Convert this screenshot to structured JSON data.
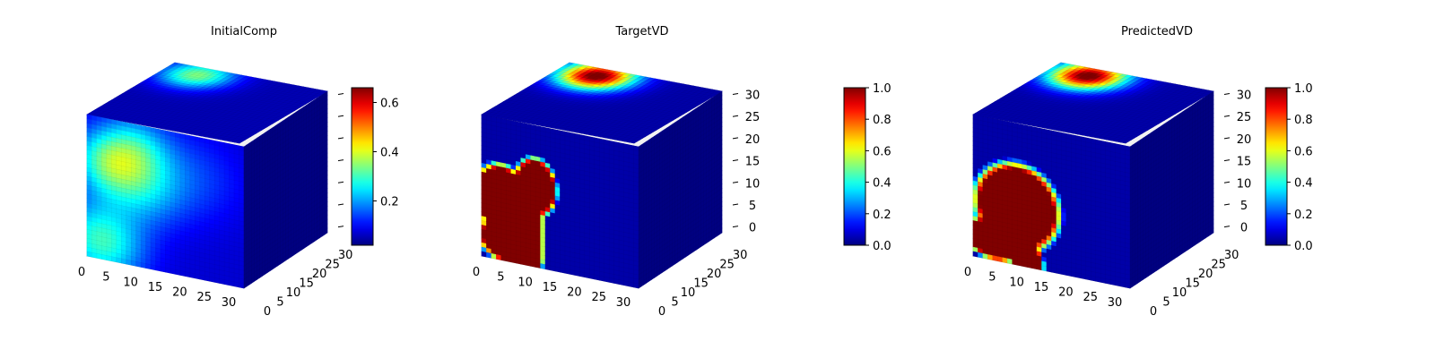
{
  "chart_data": [
    {
      "type": "heatmap",
      "subtype": "3d-voxel-cube",
      "title": "InitialComp",
      "colormap": "jet",
      "x_ticks": [
        0,
        5,
        10,
        15,
        20,
        25,
        30
      ],
      "y_ticks": [
        0,
        5,
        10,
        15,
        20,
        25,
        30
      ],
      "z_ticks": [],
      "grid_size": 32,
      "colorbar": {
        "min": 0.02,
        "max": 0.66,
        "ticks": [
          0.2,
          0.4,
          0.6
        ],
        "tick_labels": [
          "0.2",
          "0.4",
          "0.6"
        ]
      },
      "front_face": {
        "base": 0.08,
        "blobs": [
          [
            3,
            28,
            6,
            0.35
          ],
          [
            4,
            10,
            5,
            0.3
          ],
          [
            11,
            14,
            6,
            0.22
          ],
          [
            10,
            5,
            5,
            0.22
          ],
          [
            22,
            9,
            7,
            0.1
          ]
        ]
      },
      "top_face": {
        "base": 0.05,
        "blobs": [
          [
            7,
            4,
            5,
            0.45
          ]
        ]
      },
      "side_face": {
        "base": 0.03,
        "blobs": []
      }
    },
    {
      "type": "heatmap",
      "subtype": "3d-voxel-cube",
      "title": "TargetVD",
      "colormap": "jet",
      "x_ticks": [
        0,
        5,
        10,
        15,
        20,
        25,
        30
      ],
      "y_ticks": [
        0,
        5,
        10,
        15,
        20,
        25,
        30
      ],
      "z_ticks": [
        0,
        5,
        10,
        15,
        20,
        25,
        30
      ],
      "grid_size": 32,
      "colorbar": {
        "min": 0.0,
        "max": 1.0,
        "ticks": [
          0.0,
          0.2,
          0.4,
          0.6,
          0.8,
          1.0
        ],
        "tick_labels": [
          "0.0",
          "0.2",
          "0.4",
          "0.6",
          "0.8",
          "1.0"
        ]
      },
      "front_face": {
        "base": 0.04,
        "shape": "target"
      },
      "top_face": {
        "base": 0.04,
        "blobs": [
          [
            8,
            4,
            5,
            1.0
          ]
        ]
      },
      "side_face": {
        "base": 0.03,
        "blobs": []
      }
    },
    {
      "type": "heatmap",
      "subtype": "3d-voxel-cube",
      "title": "PredictedVD",
      "colormap": "jet",
      "x_ticks": [
        0,
        5,
        10,
        15,
        20,
        25,
        30
      ],
      "y_ticks": [
        0,
        5,
        10,
        15,
        20,
        25,
        30
      ],
      "z_ticks": [
        0,
        5,
        10,
        15,
        20,
        25,
        30
      ],
      "grid_size": 32,
      "colorbar": {
        "min": 0.0,
        "max": 1.0,
        "ticks": [
          0.0,
          0.2,
          0.4,
          0.6,
          0.8,
          1.0
        ],
        "tick_labels": [
          "0.0",
          "0.2",
          "0.4",
          "0.6",
          "0.8",
          "1.0"
        ]
      },
      "front_face": {
        "base": 0.04,
        "shape": "predicted"
      },
      "top_face": {
        "base": 0.04,
        "blobs": [
          [
            8,
            4,
            5,
            1.0
          ]
        ]
      },
      "side_face": {
        "base": 0.03,
        "blobs": []
      }
    }
  ]
}
